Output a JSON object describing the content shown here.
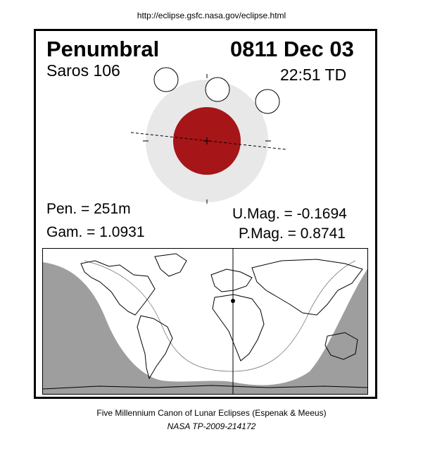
{
  "header": {
    "url": "http://eclipse.gsfc.nasa.gov/eclipse.html"
  },
  "eclipse": {
    "type": "Penumbral",
    "date": "0811 Dec 03",
    "saros": "Saros 106",
    "time": "22:51 TD",
    "pen": "Pen. = 251m",
    "gam": "Gam. = 1.0931",
    "umag": "U.Mag. = -0.1694",
    "pmag": "P.Mag. = 0.8741"
  },
  "colors": {
    "umbra": "#a61517",
    "penumbra": "#e8e8e8",
    "night_shading": "#9e9e9e",
    "day_region": "#ffffff",
    "land_outline": "#000000"
  },
  "footer": {
    "canon": "Five Millennium Canon of Lunar Eclipses (Espenak & Meeus)",
    "publication": "NASA TP-2009-214172"
  }
}
